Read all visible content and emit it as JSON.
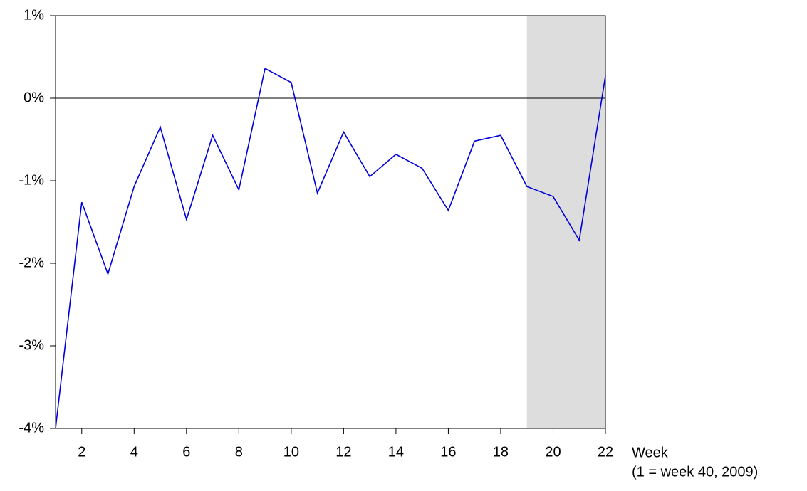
{
  "chart_data": {
    "type": "line",
    "x_label": "Week",
    "x_note": "(1 = week 40, 2009)",
    "x": [
      1,
      2,
      3,
      4,
      5,
      6,
      7,
      8,
      9,
      10,
      11,
      12,
      13,
      14,
      15,
      16,
      17,
      18,
      19,
      20,
      21,
      22
    ],
    "series": [
      {
        "color": "#0000dd",
        "values": [
          -4.0,
          -1.26,
          -2.13,
          -1.07,
          -0.35,
          -1.47,
          -0.45,
          -1.11,
          0.36,
          0.19,
          -1.15,
          -0.41,
          -0.95,
          -0.68,
          -0.85,
          -1.36,
          -0.52,
          -0.45,
          -1.07,
          -1.19,
          -1.72,
          0.27
        ]
      }
    ],
    "xlim": [
      1,
      22
    ],
    "xticks": [
      2,
      4,
      6,
      8,
      10,
      12,
      14,
      16,
      18,
      20,
      22
    ],
    "ylim": [
      -4,
      1
    ],
    "yticks": [
      {
        "value": -4,
        "label": "-4%"
      },
      {
        "value": -3,
        "label": "-3%"
      },
      {
        "value": -2,
        "label": "-2%"
      },
      {
        "value": -1,
        "label": "-1%"
      },
      {
        "value": 0,
        "label": "0%"
      },
      {
        "value": 1,
        "label": "1%"
      }
    ],
    "shaded_x": [
      19,
      22
    ],
    "shade_color": "#dddddd",
    "zero_line": true
  }
}
